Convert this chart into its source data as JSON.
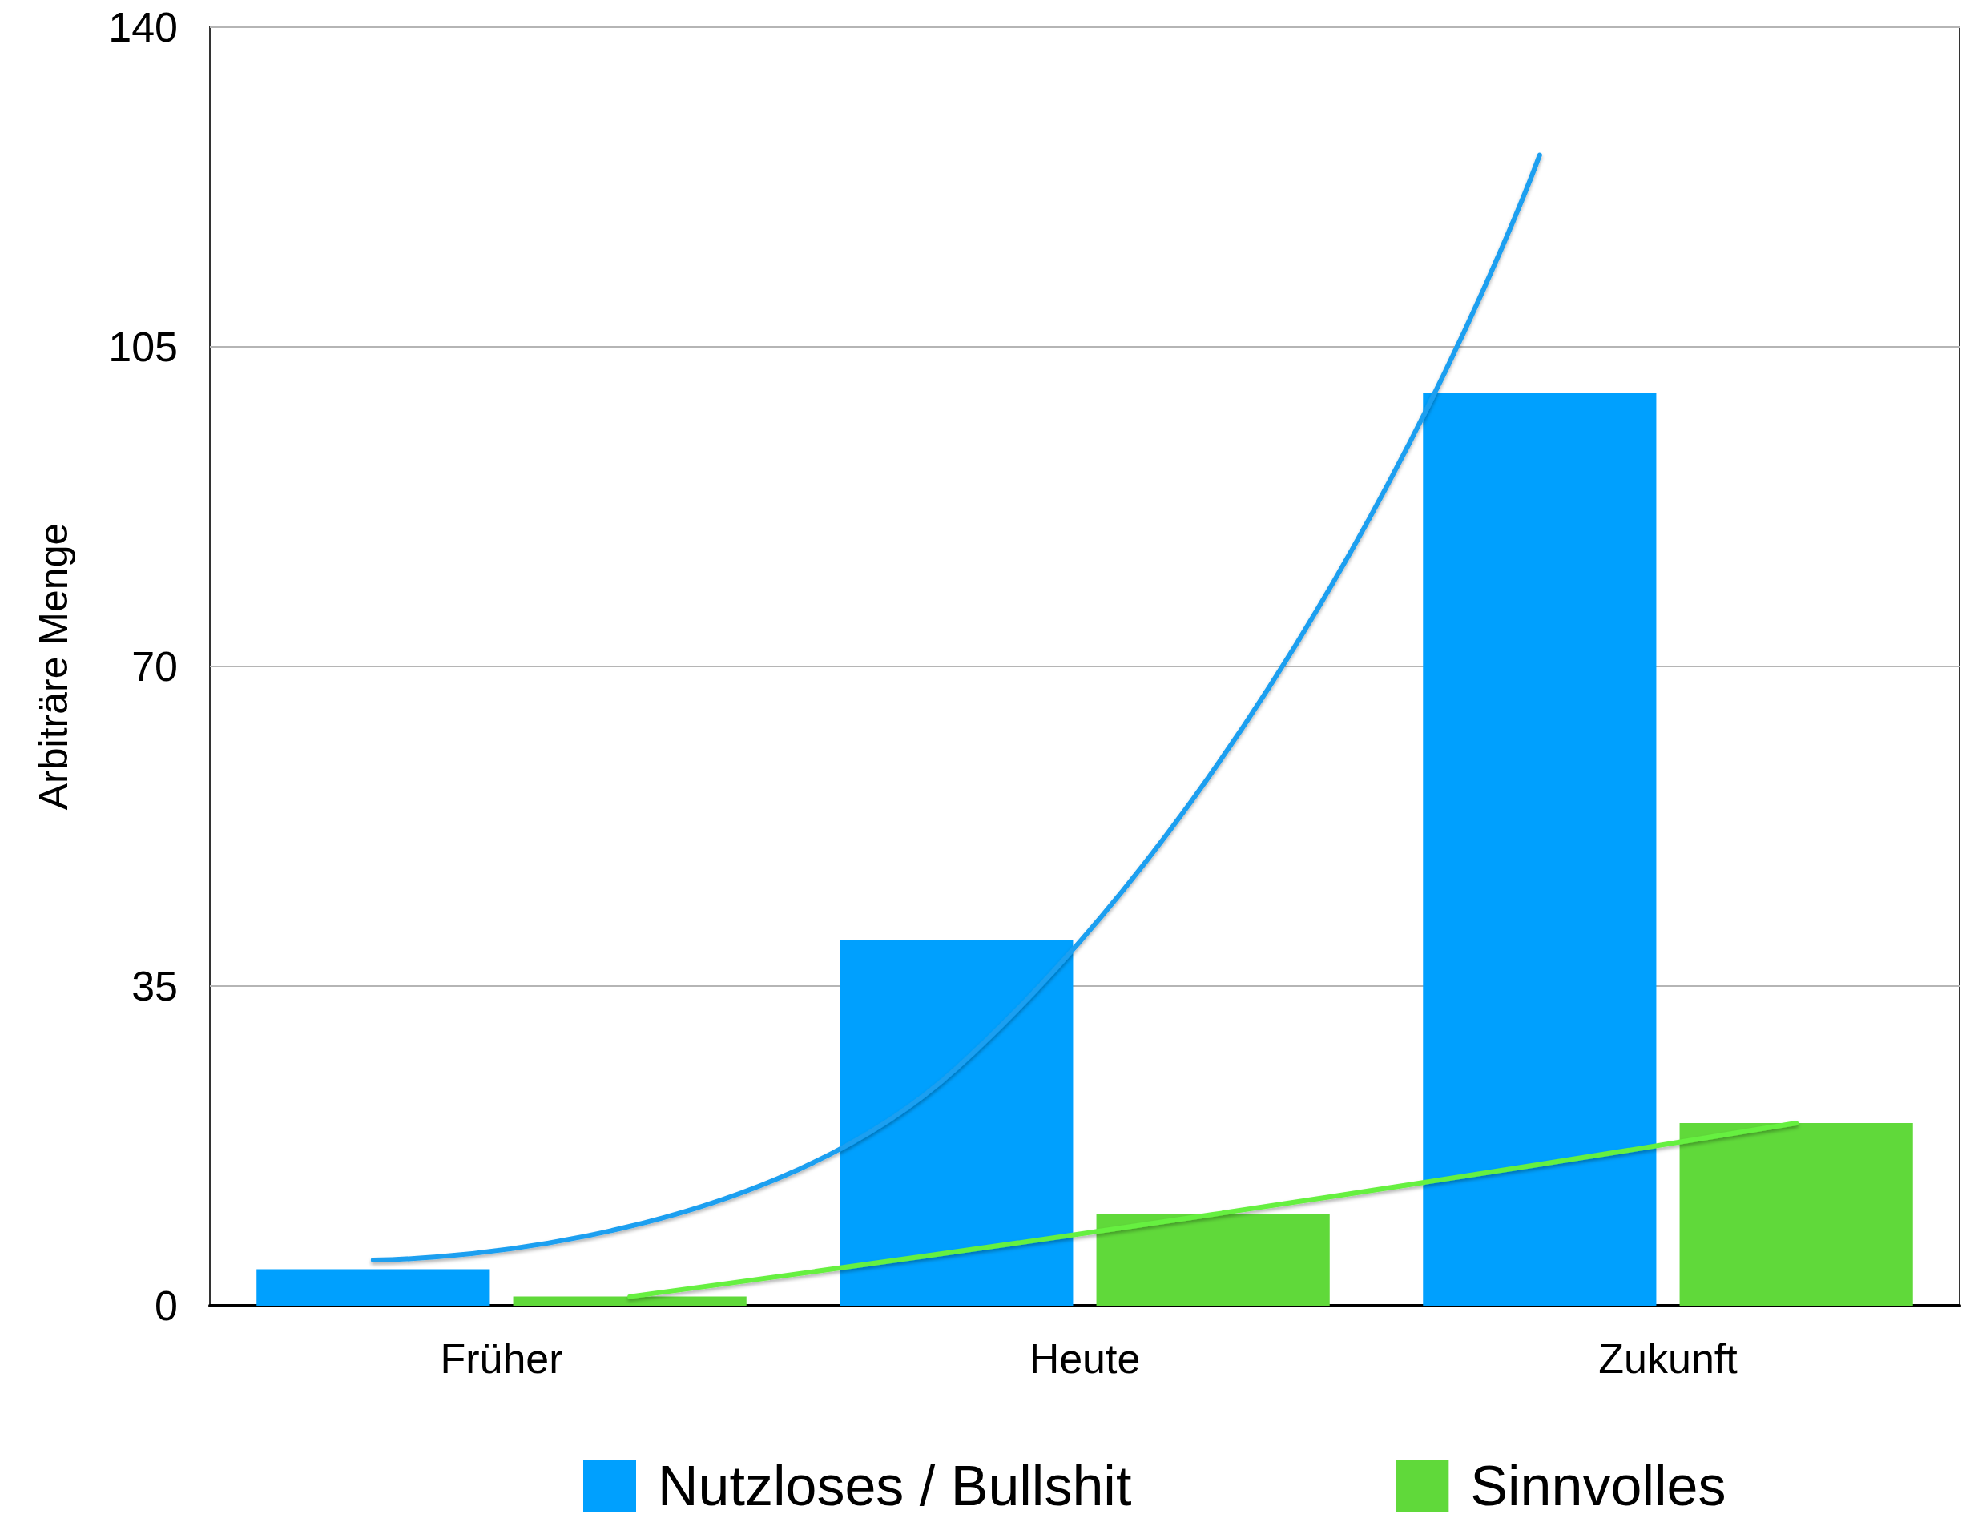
{
  "chart_data": {
    "type": "bar",
    "ylabel": "Arbiträre Menge",
    "categories": [
      "Früher",
      "Heute",
      "Zukunft"
    ],
    "series": [
      {
        "name": "Nutzloses / Bullshit",
        "color": "#00a0fe",
        "values": [
          4,
          40,
          100
        ]
      },
      {
        "name": "Sinnvolles",
        "color": "#60d93a",
        "values": [
          1,
          10,
          20
        ]
      },
      {
        "type": "line",
        "color": "#1a9ff0",
        "x": [
          "Früher",
          "Heute",
          "Zukunft"
        ],
        "values": [
          5,
          26,
          126
        ]
      },
      {
        "type": "line",
        "color": "#66f040",
        "x": [
          "Früher",
          "Heute",
          "Zukunft"
        ],
        "values": [
          1,
          10,
          20
        ]
      }
    ],
    "ylim": [
      0,
      140
    ],
    "yticks": [
      0,
      35,
      70,
      105,
      140
    ],
    "grid": "y",
    "legend": "bottom",
    "marker": "none",
    "line_style": "solid"
  }
}
